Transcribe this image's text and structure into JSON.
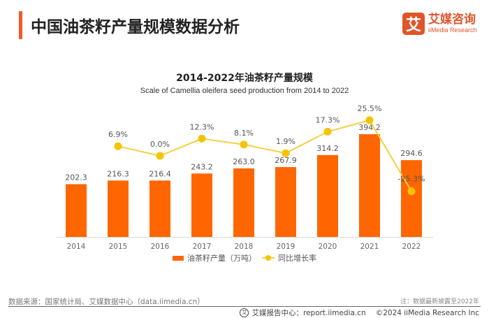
{
  "header": {
    "title": "中国油茶籽产量规模数据分析",
    "logo": {
      "mark": "艾",
      "cn": "艾媒咨询",
      "en": "iiMedia Research"
    }
  },
  "colors": {
    "accent": "#f05a28",
    "bar": "#ff6600",
    "line": "#f5d040",
    "marker": "#f5c400"
  },
  "chart_data": {
    "type": "bar",
    "title": "2014-2022年油茶籽产量规模",
    "subtitle": "Scale of Camellia oleifera seed production from 2014 to 2022",
    "categories": [
      "2014",
      "2015",
      "2016",
      "2017",
      "2018",
      "2019",
      "2020",
      "2021",
      "2022"
    ],
    "series": [
      {
        "name": "油茶籽产量（万吨）",
        "type": "bar",
        "values": [
          202.3,
          216.3,
          216.4,
          243.2,
          263.0,
          267.9,
          314.2,
          394.2,
          294.6
        ],
        "labels": [
          "202.3",
          "216.3",
          "216.4",
          "243.2",
          "263.0",
          "267.9",
          "314.2",
          "394.2",
          "294.6"
        ]
      },
      {
        "name": "同比增长率",
        "type": "line",
        "unit": "%",
        "values": [
          null,
          6.9,
          0.0,
          12.3,
          8.1,
          1.9,
          17.3,
          25.5,
          -25.3
        ],
        "labels": [
          null,
          "6.9%",
          "0.0%",
          "12.3%",
          "8.1%",
          "1.9%",
          "17.3%",
          "25.5%",
          "-25.3%"
        ]
      }
    ],
    "xlabel": "",
    "ylabel": "",
    "grid": false,
    "legend": "bottom"
  },
  "legend": {
    "bar_label": "油茶籽产量（万吨）",
    "line_label": "同比增长率"
  },
  "footer": {
    "source": "数据来源：国家统计局、艾媒数据中心（data.iimedia.cn）",
    "note": "注：数据最新披露至2022年",
    "report_center": "艾媒报告中心：report.iimedia.cn",
    "copyright": "©2024  iiMedia Research  Inc"
  }
}
